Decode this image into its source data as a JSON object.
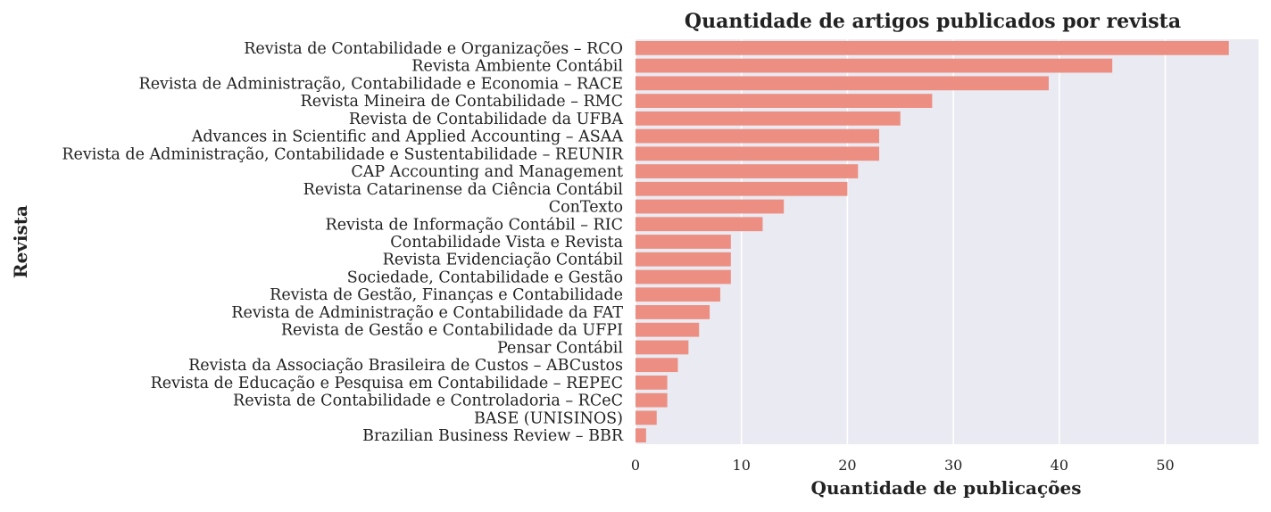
{
  "chart_data": {
    "type": "bar",
    "orientation": "horizontal",
    "title": "Quantidade de artigos publicados por revista",
    "xlabel": "Quantidade de publicações",
    "ylabel": "Revista",
    "categories": [
      "Revista de Contabilidade e Organizações – RCO",
      "Revista Ambiente Contábil",
      "Revista de Administração, Contabilidade e Economia – RACE",
      "Revista Mineira de Contabilidade – RMC",
      "Revista de Contabilidade da UFBA",
      "Advances in Scientific and Applied Accounting – ASAA",
      "Revista de Administração, Contabilidade e Sustentabilidade – REUNIR",
      "CAP Accounting and Management",
      "Revista Catarinense da Ciência Contábil",
      "ConTexto",
      "Revista de Informação Contábil – RIC",
      "Contabilidade Vista e Revista",
      "Revista Evidenciação Contábil",
      "Sociedade, Contabilidade e Gestão",
      "Revista de Gestão, Finanças e Contabilidade",
      "Revista de Administração e Contabilidade da FAT",
      "Revista de Gestão e Contabilidade da UFPI",
      "Pensar Contábil",
      "Revista da Associação Brasileira de Custos – ABCustos",
      "Revista de Educação e Pesquisa em Contabilidade – REPEC",
      "Revista de Contabilidade e Controladoria – RCeC",
      "BASE (UNISINOS)",
      "Brazilian Business Review – BBR"
    ],
    "values": [
      56,
      45,
      39,
      28,
      25,
      23,
      23,
      21,
      20,
      14,
      12,
      9,
      9,
      9,
      8,
      7,
      6,
      5,
      4,
      3,
      3,
      2,
      1
    ],
    "xlim": [
      0,
      58.8
    ],
    "xticks": [
      "0",
      "10",
      "20",
      "30",
      "40",
      "50"
    ],
    "grid": true,
    "colors": {
      "bar": "#ec8f82",
      "background": "#eaeaf2",
      "grid": "#ffffff"
    }
  }
}
